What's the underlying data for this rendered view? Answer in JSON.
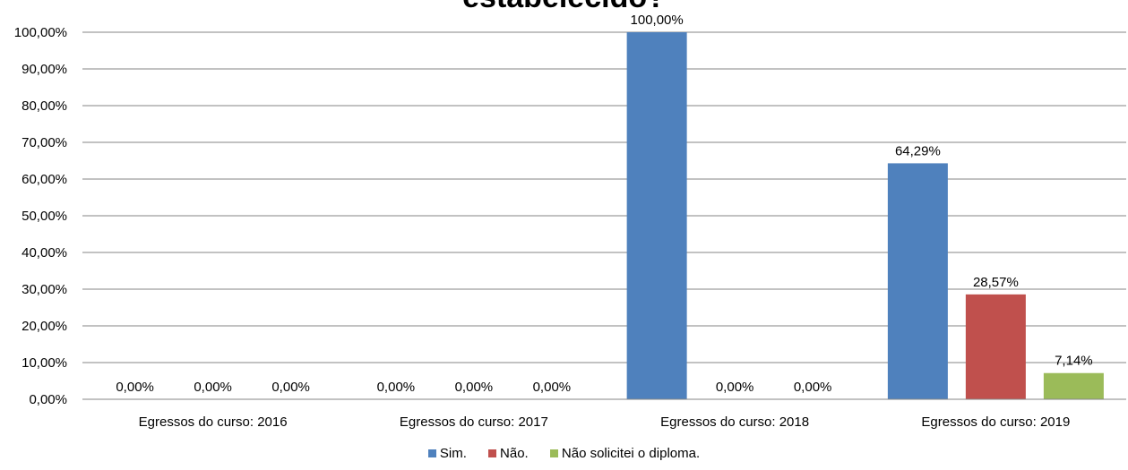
{
  "chart_data": {
    "type": "bar",
    "title": "estabelecido?",
    "categories": [
      "Egressos do curso: 2016",
      "Egressos do curso: 2017",
      "Egressos do curso: 2018",
      "Egressos do curso: 2019"
    ],
    "series": [
      {
        "name": "Sim.",
        "color": "#4F81BD",
        "values": [
          0,
          0,
          100,
          64.29
        ],
        "labels": [
          "0,00%",
          "0,00%",
          "100,00%",
          "64,29%"
        ]
      },
      {
        "name": "Não.",
        "color": "#C0504D",
        "values": [
          0,
          0,
          0,
          28.57
        ],
        "labels": [
          "0,00%",
          "0,00%",
          "0,00%",
          "28,57%"
        ]
      },
      {
        "name": "Não solicitei o diploma.",
        "color": "#9BBB59",
        "values": [
          0,
          0,
          0,
          7.14
        ],
        "labels": [
          "0,00%",
          "0,00%",
          "0,00%",
          "7,14%"
        ]
      }
    ],
    "ylim": [
      0,
      100
    ],
    "yticks": [
      "0,00%",
      "10,00%",
      "20,00%",
      "30,00%",
      "40,00%",
      "50,00%",
      "60,00%",
      "70,00%",
      "80,00%",
      "90,00%",
      "100,00%"
    ],
    "grid": true,
    "legend": "bottom"
  }
}
